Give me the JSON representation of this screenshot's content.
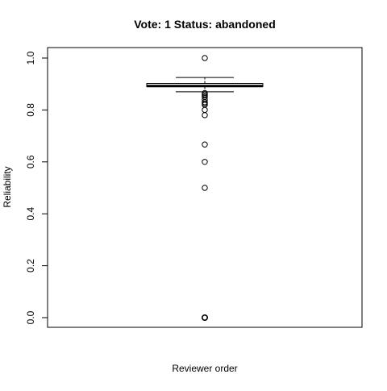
{
  "chart_data": {
    "type": "boxplot",
    "title": "Vote: 1 Status: abandoned",
    "xlabel": "Reviewer order",
    "ylabel": "Reliability",
    "ylim": [
      0.0,
      1.0
    ],
    "y_ticks": [
      "0.0",
      "0.2",
      "0.4",
      "0.6",
      "0.8",
      "1.0"
    ],
    "grid": false,
    "box": {
      "lower_whisker": 0.87,
      "q1": 0.89,
      "median": 0.892,
      "q3": 0.902,
      "upper_whisker": 0.925
    },
    "outliers": [
      1.0,
      0.865,
      0.86,
      0.855,
      0.85,
      0.84,
      0.83,
      0.825,
      0.82,
      0.8,
      0.78,
      0.667,
      0.6,
      0.5,
      0.0
    ]
  }
}
